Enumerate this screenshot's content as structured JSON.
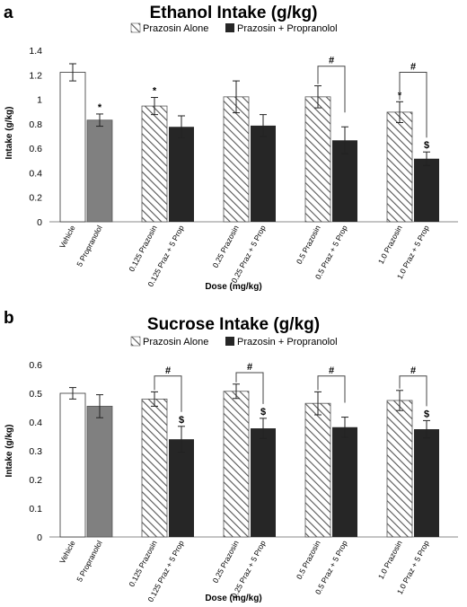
{
  "panels": [
    {
      "letter": "a",
      "legend": [
        {
          "label": "Prazosin Alone",
          "pattern": "hatch"
        },
        {
          "label": "Prazosin + Propranolol",
          "pattern": "dark"
        }
      ]
    },
    {
      "letter": "b",
      "legend": [
        {
          "label": "Prazosin Alone",
          "pattern": "hatch"
        },
        {
          "label": "Prazosin + Propranolol",
          "pattern": "dark"
        }
      ]
    }
  ],
  "colors": {
    "dark_bar": "#262626",
    "gray_bar": "#808080",
    "white_bar": "#ffffff",
    "hatch": "#555555",
    "axis": "#888888"
  },
  "chart_data": [
    {
      "type": "bar",
      "title": "Ethanol Intake (g/kg)",
      "xlabel": "Dose (mg/kg)",
      "ylabel": "Intake (g/kg)",
      "ylim": [
        0,
        1.4
      ],
      "yticks": [
        "0",
        "0.2",
        "0.4",
        "0.6",
        "0.8",
        "1",
        "1.2",
        "1.4"
      ],
      "grid": false,
      "legend_position": "top",
      "bars": [
        {
          "group": 0,
          "slot": 0,
          "label": "Vehicle",
          "value": 1.22,
          "error": 0.07,
          "style": "white",
          "marker": ""
        },
        {
          "group": 0,
          "slot": 1,
          "label": "5 Propranolol",
          "value": 0.83,
          "error": 0.05,
          "style": "gray",
          "marker": "*"
        },
        {
          "group": 1,
          "slot": 0,
          "label": "0.125 Prazosin",
          "value": 0.945,
          "error": 0.07,
          "style": "hatch",
          "marker": "*"
        },
        {
          "group": 1,
          "slot": 1,
          "label": "0.125 Praz + 5 Prop",
          "value": 0.775,
          "error": 0.09,
          "style": "dark",
          "marker": ""
        },
        {
          "group": 2,
          "slot": 0,
          "label": "0.25 Prazosin",
          "value": 1.02,
          "error": 0.13,
          "style": "hatch",
          "marker": ""
        },
        {
          "group": 2,
          "slot": 1,
          "label": "0.25 Praz + 5 Prop",
          "value": 0.785,
          "error": 0.09,
          "style": "dark",
          "marker": ""
        },
        {
          "group": 3,
          "slot": 0,
          "label": "0.5 Prazosin",
          "value": 1.02,
          "error": 0.09,
          "style": "hatch",
          "marker": ""
        },
        {
          "group": 3,
          "slot": 1,
          "label": "0.5 Praz + 5 Prop",
          "value": 0.665,
          "error": 0.11,
          "style": "dark",
          "marker": ""
        },
        {
          "group": 4,
          "slot": 0,
          "label": "1.0 Prazosin",
          "value": 0.895,
          "error": 0.085,
          "style": "hatch",
          "marker": "*"
        },
        {
          "group": 4,
          "slot": 1,
          "label": "1.0 Praz + 5 Prop",
          "value": 0.515,
          "error": 0.055,
          "style": "dark",
          "marker": "$"
        }
      ],
      "brackets": [
        {
          "group": 3,
          "level": 1.27,
          "label": "#"
        },
        {
          "group": 4,
          "level": 1.22,
          "label": "#"
        }
      ]
    },
    {
      "type": "bar",
      "title": "Sucrose Intake (g/kg)",
      "xlabel": "Dose (mg/kg)",
      "ylabel": "Intake (g/kg)",
      "ylim": [
        0,
        0.6
      ],
      "yticks": [
        "0",
        "0.1",
        "0.2",
        "0.3",
        "0.4",
        "0.5",
        "0.6"
      ],
      "grid": false,
      "legend_position": "top",
      "bars": [
        {
          "group": 0,
          "slot": 0,
          "label": "Vehicle",
          "value": 0.5,
          "error": 0.02,
          "style": "white",
          "marker": ""
        },
        {
          "group": 0,
          "slot": 1,
          "label": "5 Propranolol",
          "value": 0.455,
          "error": 0.04,
          "style": "gray",
          "marker": ""
        },
        {
          "group": 1,
          "slot": 0,
          "label": "0.125 Prazosin",
          "value": 0.48,
          "error": 0.025,
          "style": "hatch",
          "marker": ""
        },
        {
          "group": 1,
          "slot": 1,
          "label": "0.125 Praz + 5 Prop",
          "value": 0.34,
          "error": 0.045,
          "style": "dark",
          "marker": "$"
        },
        {
          "group": 2,
          "slot": 0,
          "label": "0.25 Prazosin",
          "value": 0.507,
          "error": 0.025,
          "style": "hatch",
          "marker": ""
        },
        {
          "group": 2,
          "slot": 1,
          "label": "0.25 Praz + 5 Prop",
          "value": 0.378,
          "error": 0.035,
          "style": "dark",
          "marker": "$"
        },
        {
          "group": 3,
          "slot": 0,
          "label": "0.5 Prazosin",
          "value": 0.465,
          "error": 0.04,
          "style": "hatch",
          "marker": ""
        },
        {
          "group": 3,
          "slot": 1,
          "label": "0.5 Praz + 5 Prop",
          "value": 0.382,
          "error": 0.035,
          "style": "dark",
          "marker": ""
        },
        {
          "group": 4,
          "slot": 0,
          "label": "1.0 Prazosin",
          "value": 0.475,
          "error": 0.035,
          "style": "hatch",
          "marker": ""
        },
        {
          "group": 4,
          "slot": 1,
          "label": "1.0 Praz + 5 Prop",
          "value": 0.375,
          "error": 0.03,
          "style": "dark",
          "marker": "$"
        }
      ],
      "brackets": [
        {
          "group": 1,
          "level": 0.56,
          "label": "#"
        },
        {
          "group": 2,
          "level": 0.572,
          "label": "#"
        },
        {
          "group": 3,
          "level": 0.56,
          "label": "#"
        },
        {
          "group": 4,
          "level": 0.56,
          "label": "#"
        }
      ]
    }
  ]
}
